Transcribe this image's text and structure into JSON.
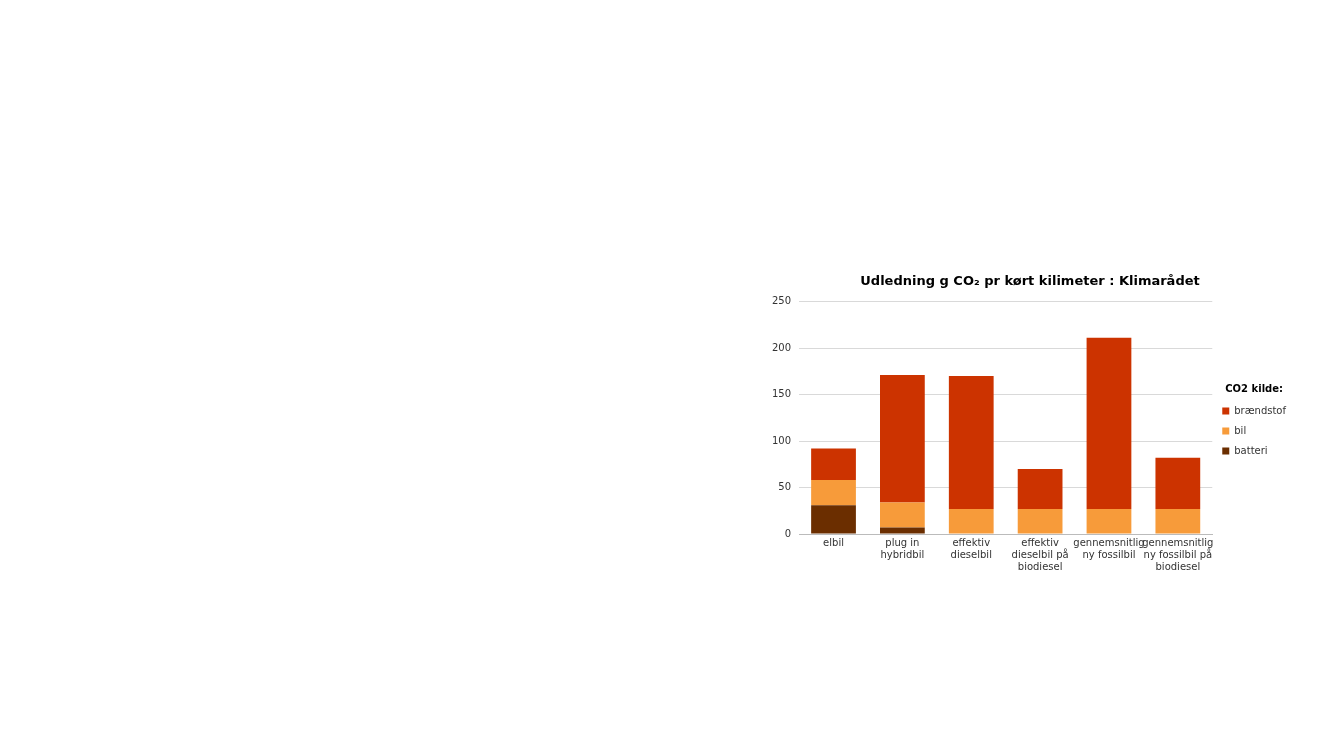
{
  "chart_data": {
    "type": "bar",
    "title": "Udledning g CO₂ pr kørt kilimeter : Klimarådet",
    "categories": [
      "elbil",
      "plug in hybridbil",
      "effektiv dieselbil",
      "effektiv dieselbil på biodiesel",
      "gennemsnitlig ny fossilbil",
      "gennemsnitlig ny fossilbil på biodiesel"
    ],
    "series": [
      {
        "name": "batteri",
        "color": "#6b2e00",
        "values": [
          31,
          7,
          null,
          null,
          null,
          null
        ]
      },
      {
        "name": "bil",
        "color": "#f79b3a",
        "values": [
          27,
          27,
          27,
          27,
          27,
          27
        ]
      },
      {
        "name": "brændstof",
        "color": "#cc3300",
        "values": [
          34,
          137,
          143,
          43,
          184,
          55
        ]
      }
    ],
    "stacked": true,
    "ylim": [
      0,
      250
    ],
    "yticks": [
      0,
      50,
      100,
      150,
      200,
      250
    ],
    "grid": "y",
    "legend": "right",
    "legend_title": "CO2 kilde:"
  }
}
